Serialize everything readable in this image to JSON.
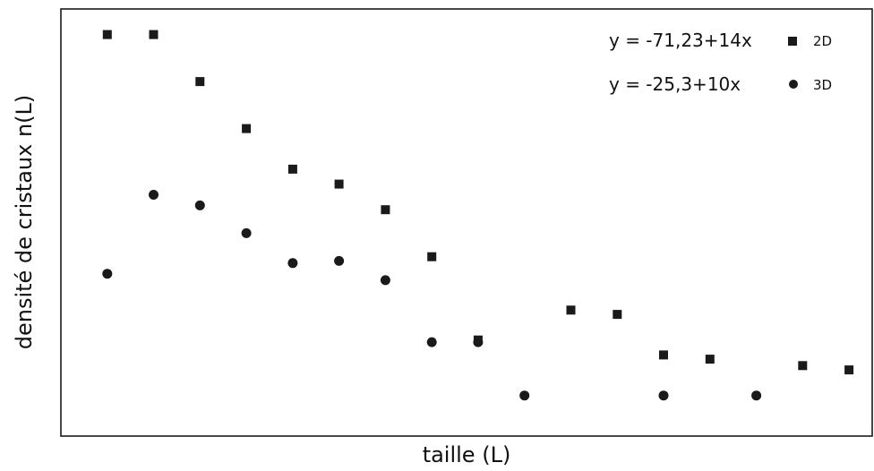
{
  "chart_data": {
    "type": "scatter",
    "xlabel": "taille (L)",
    "ylabel": "densité de cristaux n(L)",
    "xlim": [
      0,
      17.5
    ],
    "ylim": [
      0,
      100
    ],
    "grid": false,
    "legend_position": "top-right",
    "series": [
      {
        "name": "2D",
        "equation": "y = -71,23+14x",
        "marker": "square",
        "color": "#1a1a1a",
        "x": [
          1,
          2,
          3,
          4,
          5,
          6,
          7,
          8,
          9,
          11,
          12,
          13,
          14,
          16,
          17
        ],
        "y": [
          94,
          94,
          83,
          72,
          62.5,
          59,
          53,
          42,
          22.5,
          29.5,
          28.5,
          19,
          18,
          16.5,
          15.5
        ]
      },
      {
        "name": "3D",
        "equation": "y = -25,3+10x",
        "marker": "circle",
        "color": "#1a1a1a",
        "x": [
          1,
          2,
          3,
          4,
          5,
          6,
          7,
          8,
          9,
          10,
          13,
          15
        ],
        "y": [
          38,
          56.5,
          54,
          47.5,
          40.5,
          41,
          36.5,
          22,
          22,
          9.5,
          9.5,
          9.5
        ]
      }
    ]
  }
}
